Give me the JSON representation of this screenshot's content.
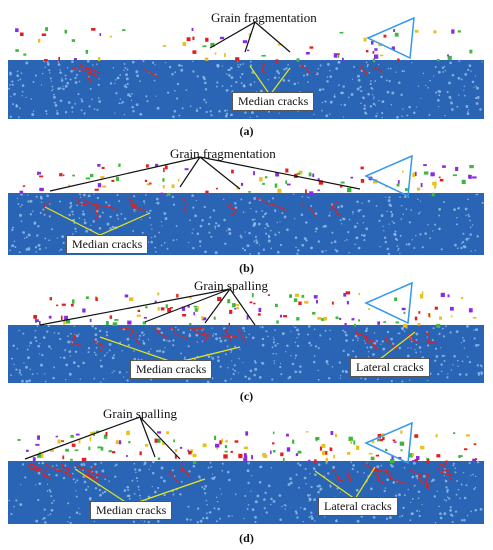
{
  "figure": {
    "panels": [
      {
        "id": "a",
        "caption": "(a)",
        "labels": [
          {
            "key": "grain_fragmentation",
            "text": "Grain fragmentation"
          },
          {
            "key": "median_cracks",
            "text": "Median cracks"
          }
        ]
      },
      {
        "id": "b",
        "caption": "(b)",
        "labels": [
          {
            "key": "grain_fragmentation",
            "text": "Grain fragmentation"
          },
          {
            "key": "median_cracks",
            "text": "Median cracks"
          }
        ]
      },
      {
        "id": "c",
        "caption": "(c)",
        "labels": [
          {
            "key": "grain_spalling",
            "text": "Grain spalling"
          },
          {
            "key": "median_cracks",
            "text": "Median cracks"
          },
          {
            "key": "lateral_cracks",
            "text": "Lateral cracks"
          }
        ]
      },
      {
        "id": "d",
        "caption": "(d)",
        "labels": [
          {
            "key": "grain_spalling",
            "text": "Grain spalling"
          },
          {
            "key": "median_cracks",
            "text": "Median cracks"
          },
          {
            "key": "lateral_cracks",
            "text": "Lateral cracks"
          }
        ]
      }
    ],
    "colors": {
      "workpiece": "#2a64b4",
      "particle_highlight": "#9cc6ee",
      "crack": "#e02020",
      "fragment_green": "#3db83d",
      "fragment_yellow": "#e8c020",
      "fragment_purple": "#8a2be2",
      "tool_outline": "#3399ee",
      "leader_black": "#111111",
      "leader_yellow": "#e6e61a"
    }
  }
}
